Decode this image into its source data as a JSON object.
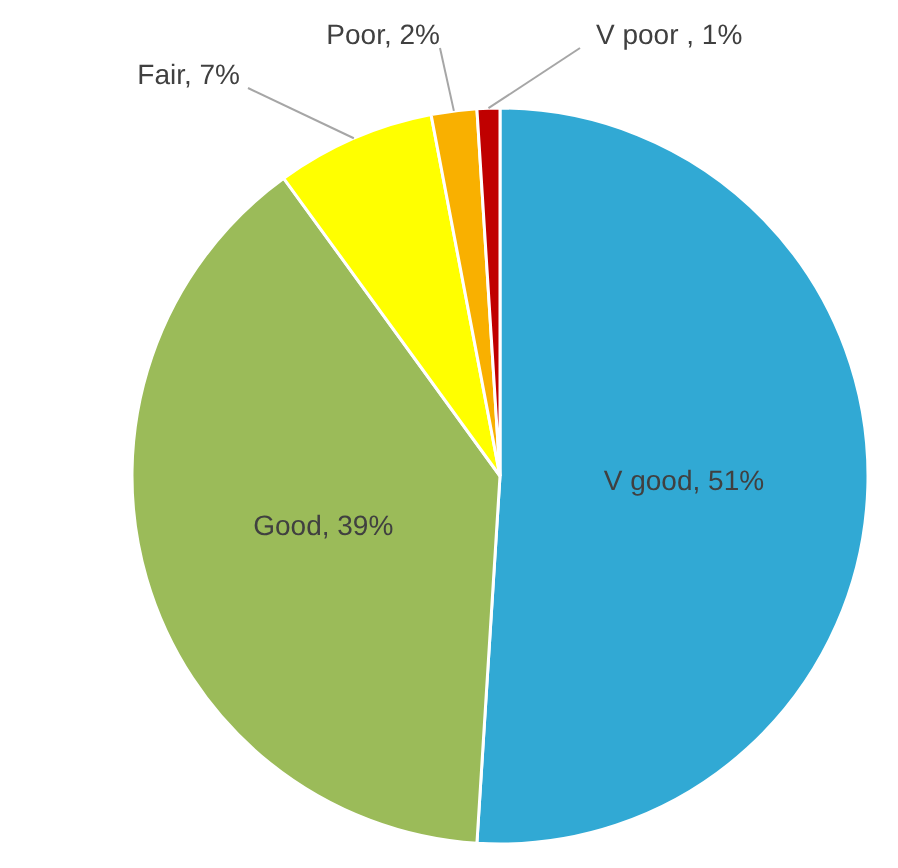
{
  "chart_data": {
    "type": "pie",
    "categories": [
      "V good",
      "Good",
      "Fair",
      "Poor",
      "V poor "
    ],
    "values": [
      51,
      39,
      7,
      2,
      1
    ],
    "colors": [
      "#31a9d4",
      "#9bbb59",
      "#ffff00",
      "#f9b000",
      "#c00000"
    ],
    "value_labels": [
      "51%",
      "39%",
      "7%",
      "2%",
      "1%"
    ]
  }
}
